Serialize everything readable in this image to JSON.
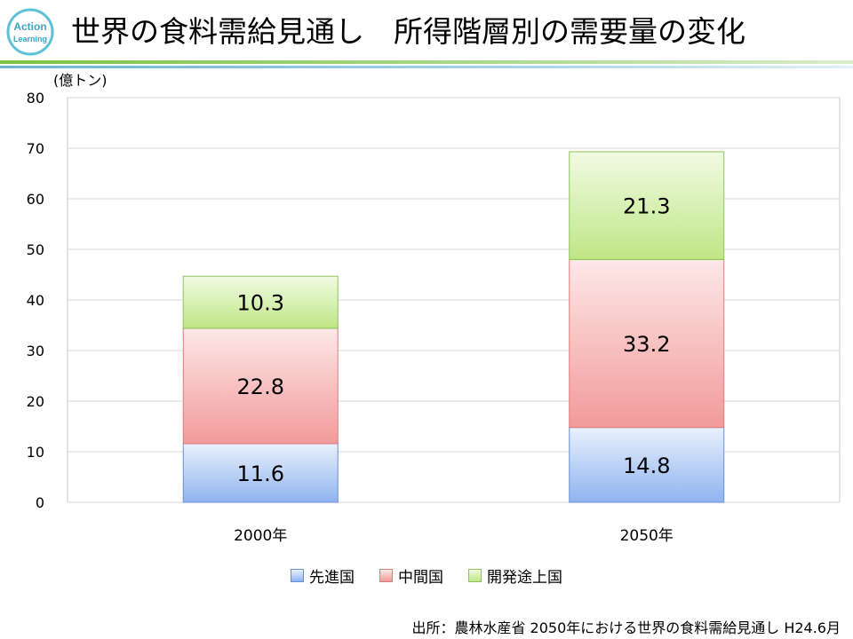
{
  "header": {
    "logo_text_line1": "Action",
    "logo_text_line2": "Learning",
    "title": "世界の食料需給見通し　所得階層別の需要量の変化"
  },
  "colors": {
    "accent_green": "#7dc243",
    "accent_blue": "#6bb3d6",
    "series_developed": "#9cbcf0",
    "series_middle": "#f4a6a6",
    "series_developing": "#c4ea8c"
  },
  "chart_data": {
    "type": "bar",
    "stacked": true,
    "unit_label": "(億トン)",
    "categories": [
      "2000年",
      "2050年"
    ],
    "series": [
      {
        "name": "先進国",
        "values": [
          11.6,
          14.8
        ],
        "labels": [
          "11.6",
          "14.8"
        ]
      },
      {
        "name": "中間国",
        "values": [
          22.8,
          33.2
        ],
        "labels": [
          "22.8",
          "33.2"
        ]
      },
      {
        "name": "開発途上国",
        "values": [
          10.3,
          21.3
        ],
        "labels": [
          "10.3",
          "21.3"
        ]
      }
    ],
    "ylim": [
      0,
      80
    ],
    "yticks": [
      "0",
      "10",
      "20",
      "30",
      "40",
      "50",
      "60",
      "70",
      "80"
    ],
    "grid": true,
    "legend_position": "bottom"
  },
  "source": "出所：農林水産省 2050年における世界の食料需給見通し H24.6月"
}
